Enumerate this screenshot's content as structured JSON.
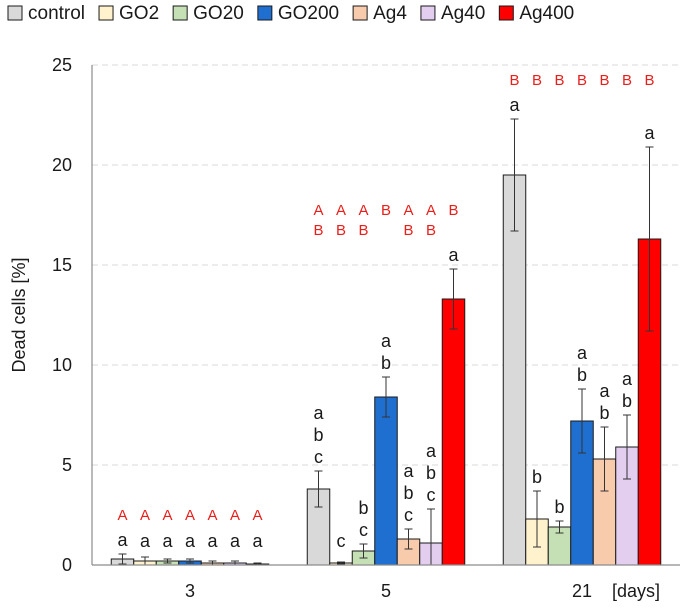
{
  "chart_data": {
    "type": "bar",
    "title": "",
    "xlabel": "",
    "x_unit_label": "[days]",
    "ylabel": "Dead cells [%]",
    "ylim": [
      0,
      25
    ],
    "yticks": [
      0,
      5,
      10,
      15,
      20,
      25
    ],
    "grid": true,
    "legend_position": "top",
    "categories": [
      "3",
      "5",
      "21"
    ],
    "series": [
      {
        "name": "control",
        "color": "#d9d9d9",
        "values": [
          0.3,
          3.8,
          19.5
        ],
        "errors": [
          0.25,
          0.9,
          2.8
        ],
        "letters": [
          [
            "a"
          ],
          [
            "a",
            "b",
            "c"
          ],
          [
            "a"
          ]
        ],
        "groups": [
          [
            "A"
          ],
          [
            "A",
            "B"
          ],
          [
            "B"
          ]
        ]
      },
      {
        "name": "GO2",
        "color": "#fff2cc",
        "values": [
          0.2,
          0.1,
          2.3
        ],
        "errors": [
          0.2,
          0.05,
          1.4
        ],
        "letters": [
          [
            "a"
          ],
          [
            "c"
          ],
          [
            "b"
          ]
        ],
        "groups": [
          [
            "A"
          ],
          [
            "A",
            "B"
          ],
          [
            "B"
          ]
        ]
      },
      {
        "name": "GO20",
        "color": "#c5e0b4",
        "values": [
          0.2,
          0.7,
          1.9
        ],
        "errors": [
          0.1,
          0.35,
          0.3
        ],
        "letters": [
          [
            "a"
          ],
          [
            "b",
            "c"
          ],
          [
            "b"
          ]
        ],
        "groups": [
          [
            "A"
          ],
          [
            "A",
            "B"
          ],
          [
            "B"
          ]
        ]
      },
      {
        "name": "GO200",
        "color": "#1f6fd1",
        "values": [
          0.2,
          8.4,
          7.2
        ],
        "errors": [
          0.1,
          1.0,
          1.6
        ],
        "letters": [
          [
            "a"
          ],
          [
            "a",
            "b"
          ],
          [
            "a",
            "b"
          ]
        ],
        "groups": [
          [
            "A"
          ],
          [
            "B"
          ],
          [
            "B"
          ]
        ]
      },
      {
        "name": "Ag4",
        "color": "#f8cbad",
        "values": [
          0.1,
          1.3,
          5.3
        ],
        "errors": [
          0.1,
          0.5,
          1.6
        ],
        "letters": [
          [
            "a"
          ],
          [
            "a",
            "b",
            "c"
          ],
          [
            "a",
            "b"
          ]
        ],
        "groups": [
          [
            "A"
          ],
          [
            "A",
            "B"
          ],
          [
            "B"
          ]
        ]
      },
      {
        "name": "Ag40",
        "color": "#e3cef0",
        "values": [
          0.1,
          1.1,
          5.9
        ],
        "errors": [
          0.1,
          1.7,
          1.6
        ],
        "letters": [
          [
            "a"
          ],
          [
            "a",
            "b",
            "c"
          ],
          [
            "a",
            "b"
          ]
        ],
        "groups": [
          [
            "A"
          ],
          [
            "A",
            "B"
          ],
          [
            "B"
          ]
        ]
      },
      {
        "name": "Ag400",
        "color": "#ff0000",
        "values": [
          0.05,
          13.3,
          16.3
        ],
        "errors": [
          0.05,
          1.5,
          4.6
        ],
        "letters": [
          [
            "a"
          ],
          [
            "a"
          ],
          [
            "a"
          ]
        ],
        "groups": [
          [
            "A"
          ],
          [
            "B"
          ],
          [
            "B"
          ]
        ]
      }
    ]
  }
}
